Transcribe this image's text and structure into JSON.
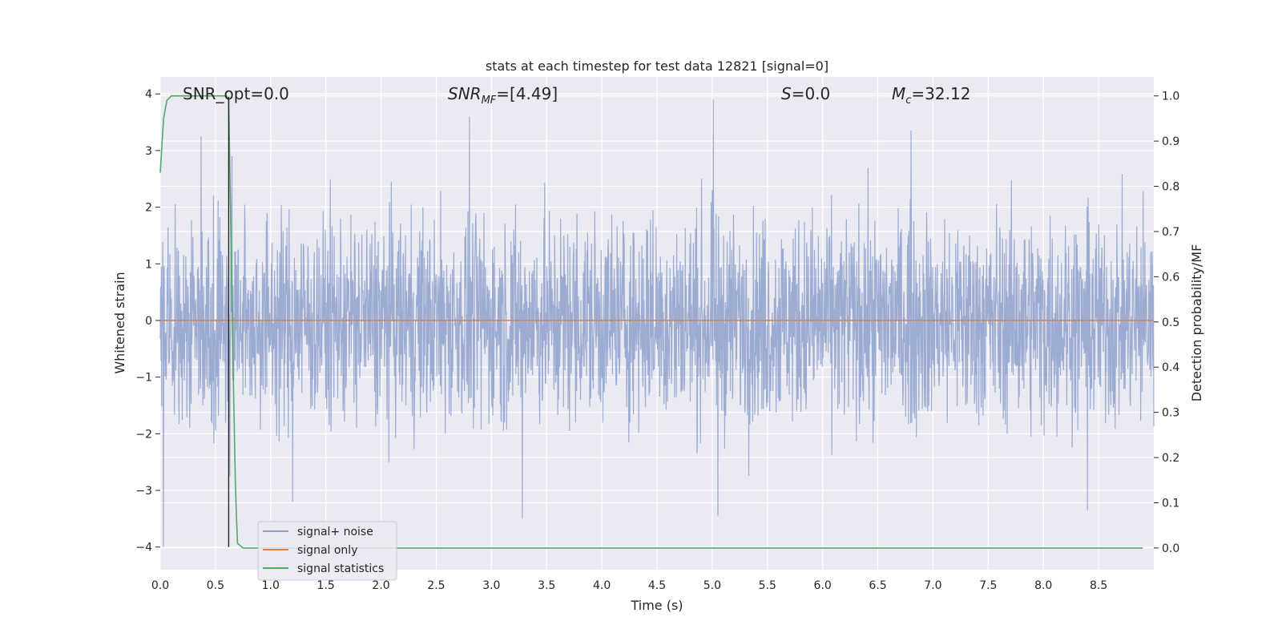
{
  "chart_data": {
    "type": "line",
    "title": "stats at each timestep for test data 12821 [signal=0]",
    "xlabel": "Time (s)",
    "ylabel": "Whitened strain",
    "y2label": "Detection probability/MF",
    "xlim": [
      0.0,
      9.0
    ],
    "ylim": [
      -4.4,
      4.3
    ],
    "y2lim": [
      -0.048,
      1.042
    ],
    "xticks": [
      "0.0",
      "0.5",
      "1.0",
      "1.5",
      "2.0",
      "2.5",
      "3.0",
      "3.5",
      "4.0",
      "4.5",
      "5.0",
      "5.5",
      "6.0",
      "6.5",
      "7.0",
      "7.5",
      "8.0",
      "8.5"
    ],
    "yticks": [
      "4",
      "3",
      "2",
      "1",
      "0",
      "−1",
      "−2",
      "−3",
      "−4"
    ],
    "y2ticks": [
      "1.0",
      "0.9",
      "0.8",
      "0.7",
      "0.6",
      "0.5",
      "0.4",
      "0.3",
      "0.2",
      "0.1",
      "0.0"
    ],
    "grid": true,
    "legend_position": "lower-left",
    "annotations": {
      "snr_opt": "SNR_opt=0.0",
      "snr_mf_main": "SNR",
      "snr_mf_sub": "MF",
      "snr_mf_rest": "=[4.49]",
      "s_main": "S",
      "s_rest": "=0.0",
      "mc_main": "M",
      "mc_sub": "c",
      "mc_rest": "=32.12"
    },
    "series": [
      {
        "name": "signal+ noise",
        "color": "#8da0cb",
        "axis": "left",
        "style": "dense noise, approx. std 1.0, range -4.0 to 3.9",
        "peaks": [
          [
            0.03,
            -4.0
          ],
          [
            0.37,
            3.25
          ],
          [
            0.63,
            -2.75
          ],
          [
            0.65,
            2.9
          ],
          [
            1.2,
            -3.2
          ],
          [
            2.8,
            3.6
          ],
          [
            3.28,
            -3.5
          ],
          [
            5.01,
            3.9
          ],
          [
            5.05,
            -3.45
          ],
          [
            6.8,
            3.35
          ],
          [
            8.4,
            -3.35
          ]
        ]
      },
      {
        "name": "signal only",
        "color": "#dd8452",
        "axis": "left",
        "x": [
          0.0,
          9.0
        ],
        "y": [
          0.0,
          0.0
        ]
      },
      {
        "name": "signal statistics",
        "color": "#55a868",
        "axis": "right",
        "x": [
          0.0,
          0.03,
          0.06,
          0.1,
          0.2,
          0.6,
          0.62,
          0.64,
          0.66,
          0.68,
          0.69,
          0.7,
          0.75,
          1.0,
          8.6,
          8.9
        ],
        "y": [
          0.83,
          0.95,
          0.99,
          1.0,
          1.0,
          1.0,
          0.99,
          0.7,
          0.4,
          0.15,
          0.07,
          0.01,
          0.0,
          0.0,
          0.0,
          0.0
        ]
      },
      {
        "name": "marker",
        "color": "#262626",
        "axis": "left",
        "x": [
          0.62,
          0.62
        ],
        "y": [
          -4.0,
          3.95
        ]
      }
    ]
  }
}
